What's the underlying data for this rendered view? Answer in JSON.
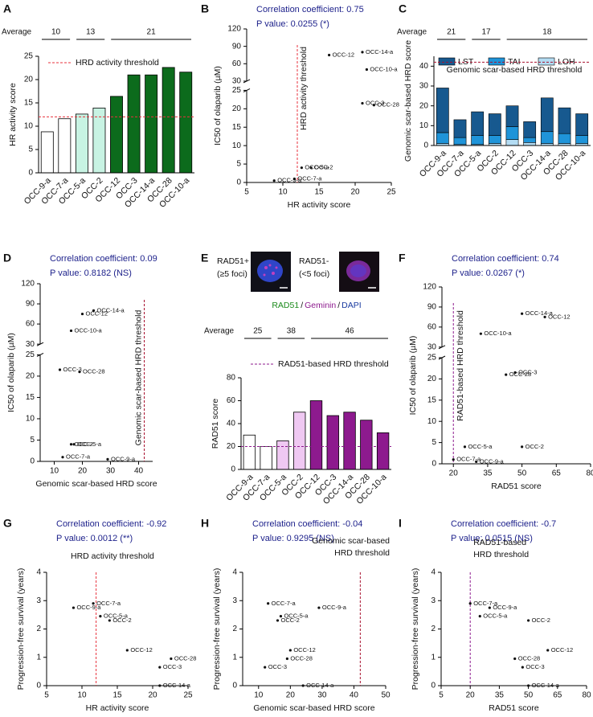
{
  "chart_data": [
    {
      "panel": "A",
      "type": "bar",
      "categories": [
        "OCC-9-a",
        "OCC-7-a",
        "OCC-5-a",
        "OCC-2",
        "OCC-12",
        "OCC-3",
        "OCC-14-a",
        "OCC-28",
        "OCC-10-a"
      ],
      "values": [
        8.8,
        11.6,
        12.6,
        13.9,
        16.4,
        21,
        21,
        22.6,
        21.6
      ],
      "groups": [
        2,
        2,
        5
      ],
      "colors": [
        "#ffffff",
        "#c8f3e3",
        "#0c6b1c"
      ],
      "average_label": "Average",
      "averages": [
        10,
        13,
        21
      ],
      "ylabel": "HR activity score",
      "ylim": [
        0,
        25
      ],
      "yticks": [
        0,
        5,
        10,
        15,
        20,
        25
      ],
      "threshold": 12,
      "threshold_label": "HRD activity threshold",
      "threshold_color": "#e8323c"
    },
    {
      "panel": "B",
      "type": "scatter",
      "annotations": [
        "Correlation coefficient: 0.75",
        "P value: 0.0255 (*)"
      ],
      "point_labels": [
        "OCC-9-a",
        "OCC-7-a",
        "OCC-5-a",
        "OCC-2",
        "OCC-12",
        "OCC-3",
        "OCC-14-a",
        "OCC-28",
        "OCC-10-a"
      ],
      "x": [
        8.8,
        11.6,
        12.6,
        13.9,
        16.4,
        21,
        21,
        22.6,
        21.6
      ],
      "values": [
        0.5,
        1,
        4,
        4,
        75,
        21.5,
        80,
        21,
        50
      ],
      "xlabel": "HR activity score",
      "ylabel": "IC50 of olaparib (µM)",
      "xlim": [
        5,
        25
      ],
      "xticks": [
        5,
        10,
        15,
        20,
        25
      ],
      "ylim": [
        0,
        120
      ],
      "y_break": [
        25,
        30
      ],
      "yticks": [
        0,
        5,
        10,
        15,
        20,
        25,
        30,
        60,
        90,
        120
      ],
      "threshold": 12,
      "threshold_label": "HRD activity threshold",
      "threshold_color": "#e8323c"
    },
    {
      "panel": "C",
      "type": "stacked_bar",
      "categories": [
        "OCC-9-a",
        "OCC-7-a",
        "OCC-5-a",
        "OCC-2",
        "OCC-12",
        "OCC-3",
        "OCC-14-a",
        "OCC-28",
        "OCC-10-a"
      ],
      "series": [
        {
          "name": "LST",
          "color": "#17598f",
          "values": [
            22.5,
            9,
            12,
            11,
            10.5,
            8,
            17,
            13,
            11
          ]
        },
        {
          "name": "TAI",
          "color": "#1f94d9",
          "values": [
            5.5,
            3.5,
            4.5,
            4,
            6.5,
            2.5,
            6,
            5,
            4
          ]
        },
        {
          "name": "LOH",
          "color": "#b3dcf3",
          "values": [
            1,
            0.5,
            0.5,
            1,
            3,
            1.5,
            1,
            1,
            1
          ]
        }
      ],
      "groups": [
        2,
        2,
        5
      ],
      "average_label": "Average",
      "averages": [
        21,
        17,
        18
      ],
      "ylabel": "Genomic scar-based HRD score",
      "ylim": [
        0,
        45
      ],
      "yticks": [
        0,
        10,
        20,
        30,
        40
      ],
      "threshold": 42,
      "threshold_label": "Genomic scar-based HRD threshold",
      "threshold_color": "#a8102e"
    },
    {
      "panel": "D",
      "type": "scatter",
      "annotations": [
        "Correlation coefficient: 0.09",
        "P value: 0.8182 (NS)"
      ],
      "point_labels": [
        "OCC-9-a",
        "OCC-7-a",
        "OCC-5-a",
        "OCC-2",
        "OCC-12",
        "OCC-3",
        "OCC-14-a",
        "OCC-28",
        "OCC-10-a"
      ],
      "x": [
        29,
        13,
        17,
        16,
        20,
        12,
        24,
        19,
        16
      ],
      "values": [
        0.5,
        1,
        4,
        4,
        75,
        21.5,
        80,
        21,
        50
      ],
      "xlabel": "Genomic scar-based HRD score",
      "ylabel": "IC50 of olaparib (µM)",
      "xlim": [
        5,
        45
      ],
      "xticks": [
        10,
        20,
        30,
        40
      ],
      "ylim": [
        0,
        120
      ],
      "y_break": [
        25,
        30
      ],
      "yticks": [
        0,
        5,
        10,
        15,
        20,
        25,
        30,
        60,
        90,
        120
      ],
      "threshold": 42,
      "threshold_label": "Genomic scar-based HRD threshold",
      "threshold_color": "#a8102e"
    },
    {
      "panel": "E",
      "type": "bar",
      "image_labels": [
        {
          "label": "RAD51+",
          "sublabel": "(≥5 foci)"
        },
        {
          "label": "RAD51-",
          "sublabel": "(<5 foci)"
        }
      ],
      "stains": [
        {
          "text": "RAD51",
          "color": "#1b8a1b"
        },
        {
          "text": "Geminin",
          "color": "#8d1a8e"
        },
        {
          "text": "DAPI",
          "color": "#1a3aa0"
        }
      ],
      "stain_separator": "/",
      "categories": [
        "OCC-9-a",
        "OCC-7-a",
        "OCC-5-a",
        "OCC-2",
        "OCC-12",
        "OCC-3",
        "OCC-14-a",
        "OCC-28",
        "OCC-10-a"
      ],
      "values": [
        30,
        20,
        25,
        50,
        60,
        47,
        50,
        43,
        32
      ],
      "groups": [
        2,
        2,
        5
      ],
      "colors": [
        "#ffffff",
        "#efc8f2",
        "#8d1a8e"
      ],
      "average_label": "Average",
      "averages": [
        25,
        38,
        46
      ],
      "ylabel": "RAD51 score",
      "ylim": [
        0,
        80
      ],
      "yticks": [
        0,
        20,
        40,
        60,
        80
      ],
      "threshold": 20,
      "threshold_label": "RAD51-based HRD threshold",
      "threshold_color": "#8d1a8e"
    },
    {
      "panel": "F",
      "type": "scatter",
      "annotations": [
        "Correlation coefficient: 0.74",
        "P value: 0.0267 (*)"
      ],
      "point_labels": [
        "OCC-9-a",
        "OCC-7-a",
        "OCC-5-a",
        "OCC-2",
        "OCC-12",
        "OCC-3",
        "OCC-14-a",
        "OCC-28",
        "OCC-10-a"
      ],
      "x": [
        30,
        20,
        25,
        50,
        60,
        47,
        50,
        43,
        32
      ],
      "values": [
        0.5,
        1,
        4,
        4,
        75,
        21.5,
        80,
        21,
        50
      ],
      "xlabel": "RAD51 score",
      "ylabel": "IC50 of olaparib (µM)",
      "xlim": [
        15,
        80
      ],
      "xticks": [
        20,
        35,
        50,
        65,
        80
      ],
      "ylim": [
        0,
        120
      ],
      "y_break": [
        25,
        30
      ],
      "yticks": [
        0,
        5,
        10,
        15,
        20,
        25,
        30,
        60,
        90,
        120
      ],
      "threshold": 20,
      "threshold_label": "RAD51-based HRD threshold",
      "threshold_color": "#8d1a8e"
    },
    {
      "panel": "G",
      "type": "scatter",
      "annotations": [
        "Correlation coefficient: -0.92",
        "P value: 0.0012 (**)"
      ],
      "point_labels": [
        "OCC-9-a",
        "OCC-7-a",
        "OCC-5-a",
        "OCC-2",
        "OCC-12",
        "OCC-3",
        "OCC-14-a",
        "OCC-28"
      ],
      "x": [
        8.8,
        11.6,
        12.6,
        13.9,
        16.4,
        21,
        21,
        22.6
      ],
      "values": [
        2.75,
        2.9,
        2.45,
        2.3,
        1.25,
        0.65,
        0,
        0.95
      ],
      "xlabel": "HR activity score",
      "ylabel": "Progression-free survival (years)",
      "xlim": [
        5,
        25
      ],
      "xticks": [
        5,
        10,
        15,
        20,
        25
      ],
      "ylim": [
        0,
        4
      ],
      "yticks": [
        0,
        1,
        2,
        3,
        4
      ],
      "threshold": 12,
      "threshold_label": [
        "HRD activity threshold"
      ],
      "threshold_color": "#e8323c"
    },
    {
      "panel": "H",
      "type": "scatter",
      "annotations": [
        "Correlation coefficient: -0.04",
        "P value: 0.9295 (NS)"
      ],
      "point_labels": [
        "OCC-9-a",
        "OCC-7-a",
        "OCC-5-a",
        "OCC-2",
        "OCC-12",
        "OCC-3",
        "OCC-14-a",
        "OCC-28"
      ],
      "x": [
        29,
        13,
        17,
        16,
        20,
        12,
        24,
        19
      ],
      "values": [
        2.75,
        2.9,
        2.45,
        2.3,
        1.25,
        0.65,
        0,
        0.95
      ],
      "xlabel": "Genomic scar-based HRD score",
      "ylabel": "Progression-free survival (years)",
      "xlim": [
        5,
        50
      ],
      "xticks": [
        10,
        20,
        30,
        40,
        50
      ],
      "ylim": [
        0,
        4
      ],
      "yticks": [
        0,
        1,
        2,
        3,
        4
      ],
      "threshold": 42,
      "threshold_label": [
        "Genomic scar-based",
        "HRD threshold"
      ],
      "threshold_color": "#a8102e"
    },
    {
      "panel": "I",
      "type": "scatter",
      "annotations": [
        "Correlation coefficient: -0.7",
        "P value: 0.0515 (NS)"
      ],
      "point_labels": [
        "OCC-9-a",
        "OCC-7-a",
        "OCC-5-a",
        "OCC-2",
        "OCC-12",
        "OCC-3",
        "OCC-14-a",
        "OCC-28"
      ],
      "x": [
        30,
        20,
        25,
        50,
        60,
        47,
        50,
        43
      ],
      "values": [
        2.75,
        2.9,
        2.45,
        2.3,
        1.25,
        0.65,
        0,
        0.95
      ],
      "xlabel": "RAD51 score",
      "ylabel": "Progression-free survival (years)",
      "xlim": [
        5,
        80
      ],
      "xticks": [
        5,
        20,
        35,
        50,
        65,
        80
      ],
      "ylim": [
        0,
        4
      ],
      "yticks": [
        0,
        1,
        2,
        3,
        4
      ],
      "threshold": 20,
      "threshold_label": [
        "RAD51-based",
        "HRD threshold"
      ],
      "threshold_color": "#8d1a8e"
    }
  ]
}
